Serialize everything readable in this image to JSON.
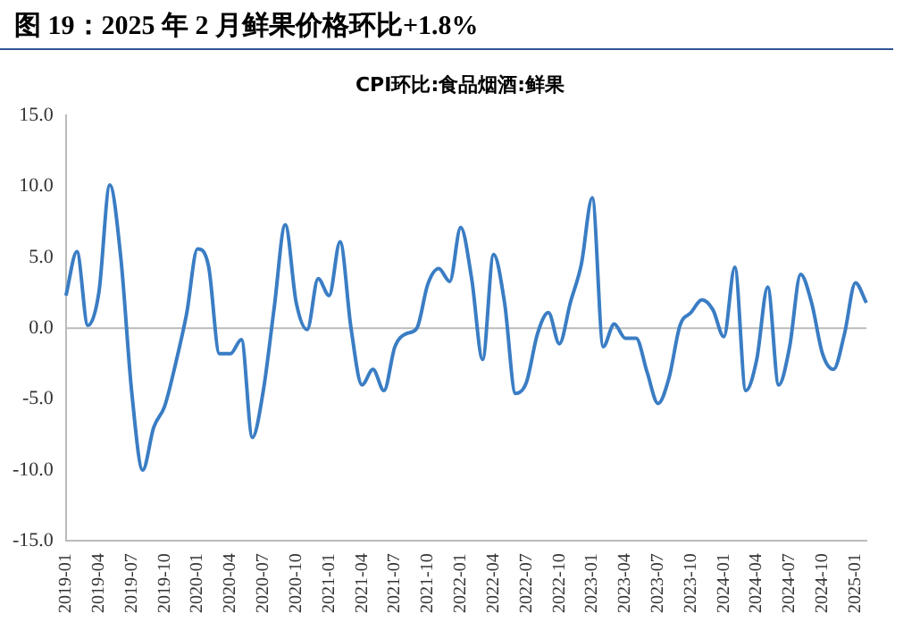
{
  "chart_data": {
    "type": "line",
    "title": "图 19：2025 年 2 月鲜果价格环比+1.8%",
    "subtitle": "CPI环比:食品烟酒:鲜果",
    "categories": [
      "2019-01",
      null,
      null,
      "2019-04",
      null,
      null,
      "2019-07",
      null,
      null,
      "2019-10",
      null,
      null,
      "2020-01",
      null,
      null,
      "2020-04",
      null,
      null,
      "2020-07",
      null,
      null,
      "2020-10",
      null,
      null,
      "2021-01",
      null,
      null,
      "2021-04",
      null,
      null,
      "2021-07",
      null,
      null,
      "2021-10",
      null,
      null,
      "2022-01",
      null,
      null,
      "2022-04",
      null,
      null,
      "2022-07",
      null,
      null,
      "2022-10",
      null,
      null,
      "2023-01",
      null,
      null,
      "2023-04",
      null,
      null,
      "2023-07",
      null,
      null,
      "2023-10",
      null,
      null,
      "2024-01",
      null,
      null,
      "2024-04",
      null,
      null,
      "2024-07",
      null,
      null,
      "2024-10",
      null,
      null,
      "2025-01",
      null
    ],
    "series": [
      {
        "color": "#3a7dc4",
        "values": [
          2.3,
          5.4,
          0.2,
          2.5,
          10.1,
          5.0,
          -4.5,
          -10.0,
          -7.0,
          -5.5,
          -2.5,
          1.0,
          5.6,
          4.4,
          -1.8,
          -1.8,
          -0.8,
          -7.7,
          -4.4,
          1.5,
          7.3,
          1.8,
          -0.1,
          3.5,
          2.3,
          6.1,
          0.0,
          -4.0,
          -2.9,
          -4.4,
          -1.3,
          -0.4,
          0.0,
          3.1,
          4.2,
          3.3,
          7.1,
          3.5,
          -2.2,
          5.2,
          1.8,
          -4.6,
          -3.8,
          -0.4,
          1.1,
          -1.1,
          1.8,
          4.5,
          9.2,
          -1.3,
          0.3,
          -0.7,
          -0.7,
          -3.1,
          -5.3,
          -3.5,
          0.2,
          1.1,
          2.0,
          1.3,
          -0.6,
          4.3,
          -4.4,
          -2.2,
          2.9,
          -4.0,
          -1.3,
          3.8,
          1.8,
          -1.8,
          -2.9,
          -0.4,
          3.2,
          1.8
        ]
      }
    ],
    "ylim": [
      -15,
      15
    ],
    "yticks": [
      {
        "value": -15,
        "label": "-15.0"
      },
      {
        "value": -10,
        "label": "-10.0"
      },
      {
        "value": -5,
        "label": "-5.0"
      },
      {
        "value": 0,
        "label": "0.0"
      },
      {
        "value": 5,
        "label": "5.0"
      },
      {
        "value": 10,
        "label": "10.0"
      },
      {
        "value": 15,
        "label": "15.0"
      }
    ],
    "ref_lines": [
      {
        "axis": "y",
        "value": 0,
        "color": "#bbbbbb"
      }
    ],
    "grid": false,
    "legend": false,
    "marker": "none",
    "line_style": "solid"
  }
}
